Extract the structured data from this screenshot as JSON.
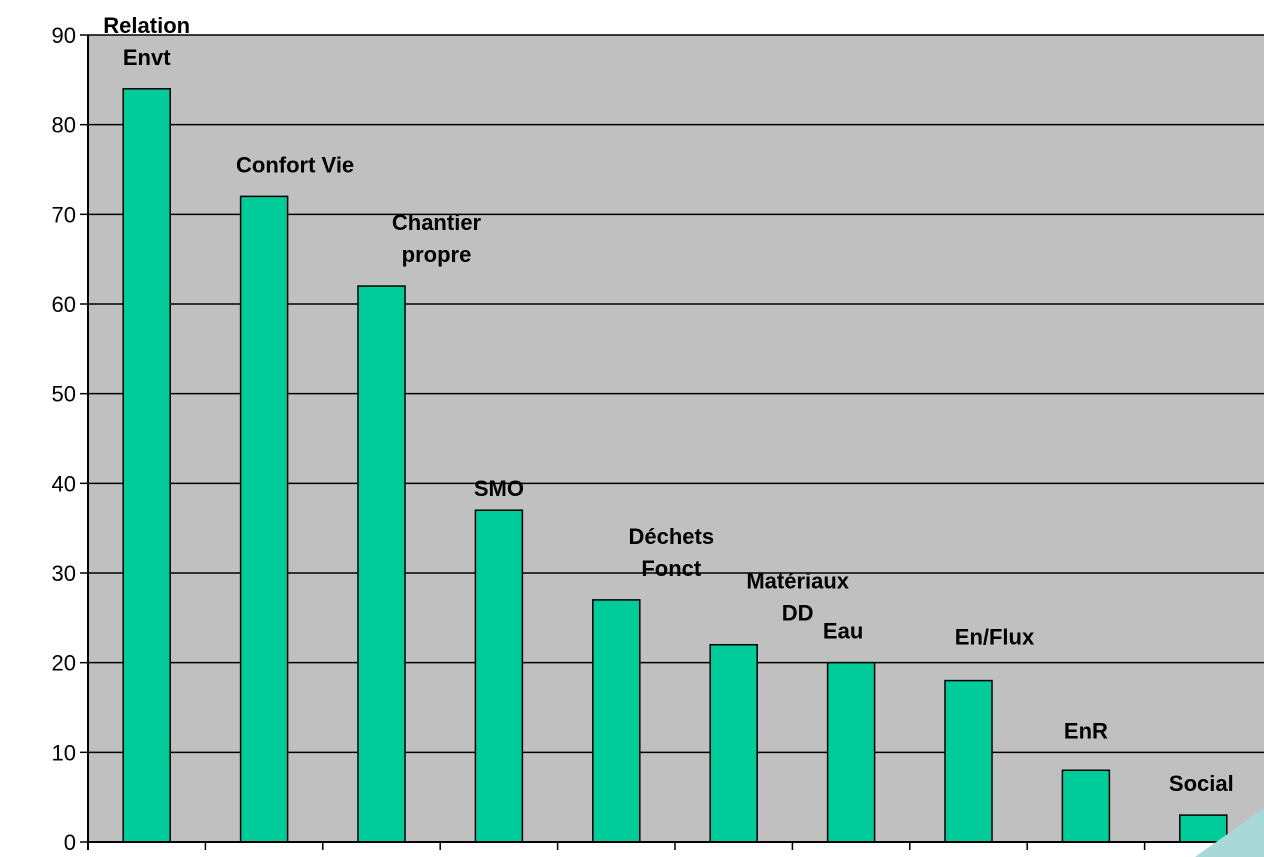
{
  "chart_data": {
    "type": "bar",
    "title": "",
    "xlabel": "",
    "ylabel": "",
    "ylim": [
      0,
      90
    ],
    "yticks": [
      0,
      10,
      20,
      30,
      40,
      50,
      60,
      70,
      80,
      90
    ],
    "grid": true,
    "legend": "none",
    "categories": [
      "Relation Envt",
      "Confort Vie",
      "Chantier propre",
      "SMO",
      "Déchets Fonct",
      "Matériaux DD",
      "Eau",
      "En/Flux",
      "EnR",
      "Social"
    ],
    "label_lines": [
      [
        "Relation",
        "Envt"
      ],
      [
        "Confort Vie"
      ],
      [
        "Chantier",
        "propre"
      ],
      [
        "SMO"
      ],
      [
        "Déchets",
        "Fonct"
      ],
      [
        "Matériaux",
        "DD"
      ],
      [
        "Eau"
      ],
      [
        "En/Flux"
      ],
      [
        "EnR"
      ],
      [
        "Social"
      ]
    ],
    "values": [
      84,
      72,
      62,
      37,
      27,
      22,
      20,
      18,
      8,
      3
    ],
    "colors": {
      "bar": "#00CC99",
      "plot_background": "#C0C0C0",
      "gridline": "#000000",
      "axis": "#000000"
    }
  }
}
